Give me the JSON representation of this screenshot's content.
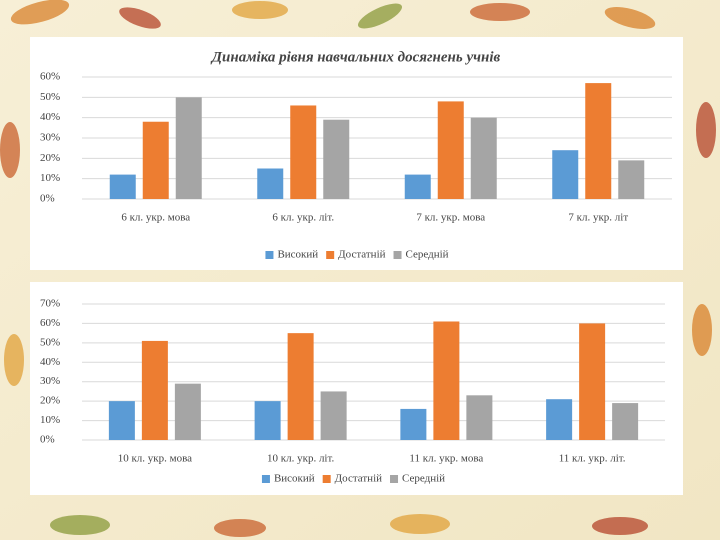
{
  "chart_data": [
    {
      "type": "bar",
      "title": "Динаміка рівня навчальних досягнень учнів",
      "categories": [
        "6 кл. укр. мова",
        "6 кл. укр. літ.",
        "7 кл. укр. мова",
        "7 кл. укр. літ"
      ],
      "series": [
        {
          "name": "Високий",
          "color": "#5b9bd5",
          "values": [
            12,
            15,
            12,
            24
          ]
        },
        {
          "name": "Достатній",
          "color": "#ed7d31",
          "values": [
            38,
            46,
            48,
            57
          ]
        },
        {
          "name": "Середній",
          "color": "#a5a5a5",
          "values": [
            50,
            39,
            40,
            19
          ]
        }
      ],
      "ylim": [
        0,
        60
      ],
      "yticks": [
        {
          "value": 0,
          "label": "0%"
        },
        {
          "value": 10,
          "label": "10%"
        },
        {
          "value": 20,
          "label": "20%"
        },
        {
          "value": 30,
          "label": "30%"
        },
        {
          "value": 40,
          "label": "40%"
        },
        {
          "value": 50,
          "label": "50%"
        },
        {
          "value": 60,
          "label": "60%"
        }
      ],
      "grid": true,
      "legend": "bottom"
    },
    {
      "type": "bar",
      "categories": [
        "10 кл. укр. мова",
        "10 кл. укр. літ.",
        "11 кл. укр. мова",
        "11 кл. укр. літ."
      ],
      "series": [
        {
          "name": "Високий",
          "color": "#5b9bd5",
          "values": [
            20,
            20,
            16,
            21
          ]
        },
        {
          "name": "Достатній",
          "color": "#ed7d31",
          "values": [
            51,
            55,
            61,
            60
          ]
        },
        {
          "name": "Середній",
          "color": "#a5a5a5",
          "values": [
            29,
            25,
            23,
            19
          ]
        }
      ],
      "ylim": [
        0,
        70
      ],
      "yticks": [
        {
          "value": 0,
          "label": "0%"
        },
        {
          "value": 10,
          "label": "10%"
        },
        {
          "value": 20,
          "label": "20%"
        },
        {
          "value": 30,
          "label": "30%"
        },
        {
          "value": 40,
          "label": "40%"
        },
        {
          "value": 50,
          "label": "50%"
        },
        {
          "value": 60,
          "label": "60%"
        },
        {
          "value": 70,
          "label": "70%"
        }
      ],
      "grid": true,
      "legend": "bottom"
    }
  ]
}
